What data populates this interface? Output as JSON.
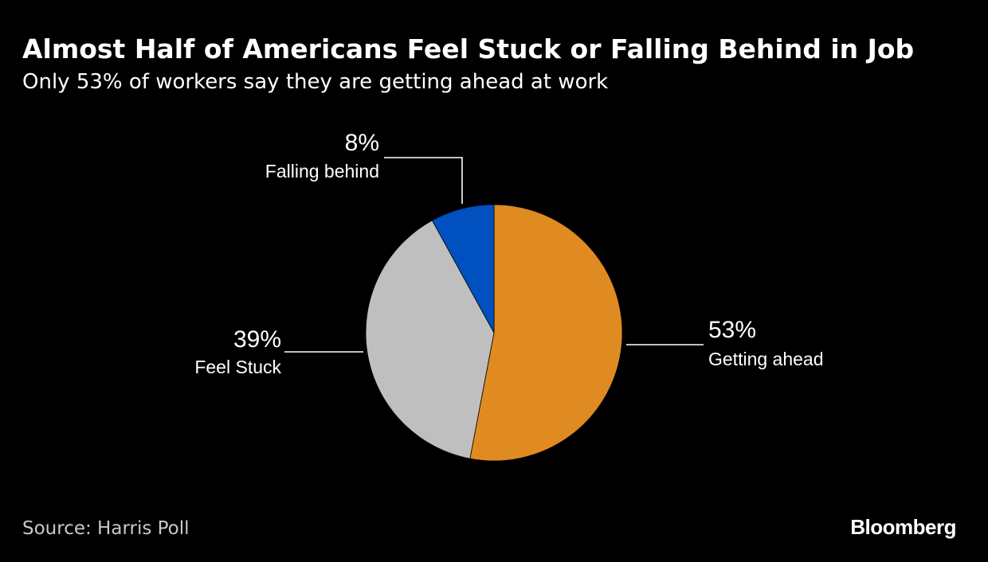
{
  "header": {
    "title": "Almost Half of Americans Feel Stuck or Falling Behind in Job",
    "subtitle": "Only 53% of workers say they are getting ahead at work"
  },
  "footer": {
    "source": "Source: Harris Poll",
    "brand": "Bloomberg"
  },
  "chart_data": {
    "type": "pie",
    "title": "Almost Half of Americans Feel Stuck or Falling Behind in Job",
    "subtitle": "Only 53% of workers say they are getting ahead at work",
    "start_angle": "12 o'clock",
    "direction": "clockwise",
    "slices": [
      {
        "label": "Getting ahead",
        "value": 53,
        "display": "53%",
        "color": "#e08a22"
      },
      {
        "label": "Feel Stuck",
        "value": 39,
        "display": "39%",
        "color": "#bfbfbf"
      },
      {
        "label": "Falling behind",
        "value": 8,
        "display": "8%",
        "color": "#0050c0"
      }
    ]
  }
}
